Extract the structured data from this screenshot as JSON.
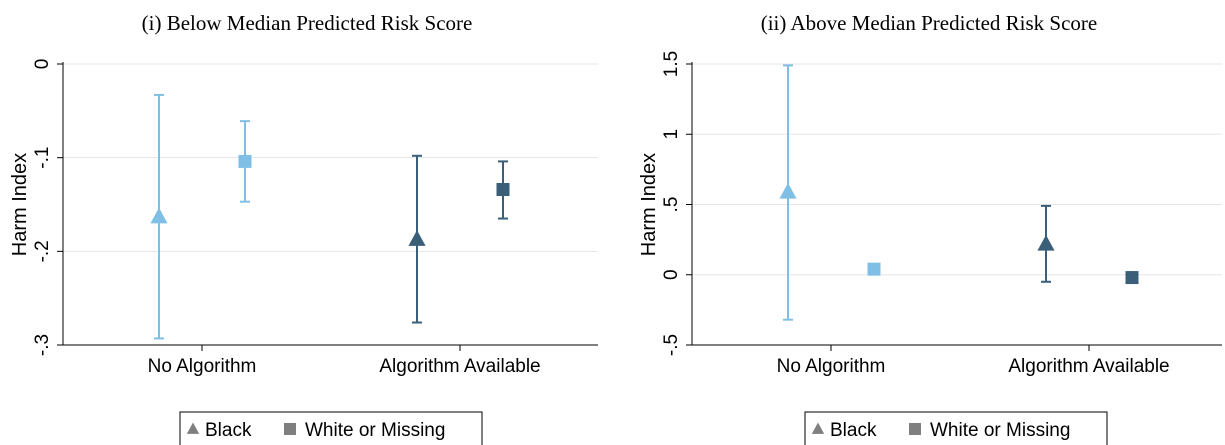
{
  "chart_data": [
    {
      "type": "scatter",
      "title": "(i) Below Median Predicted Risk Score",
      "ylabel": "Harm Index",
      "ylim": [
        -0.3,
        0
      ],
      "yticks": [
        0,
        -0.1,
        -0.2,
        -0.3
      ],
      "ytick_labels": [
        "0",
        "-.1",
        "-.2",
        "-.3"
      ],
      "grid": true,
      "categories": [
        "No Algorithm",
        "Algorithm Available"
      ],
      "series": [
        {
          "name": "Black",
          "marker": "triangle",
          "points": [
            {
              "category": "No Algorithm",
              "estimate": -0.163,
              "ci_low": -0.293,
              "ci_high": -0.033,
              "color": "#7fbfe6"
            },
            {
              "category": "Algorithm Available",
              "estimate": -0.187,
              "ci_low": -0.276,
              "ci_high": -0.098,
              "color": "#3b5f78"
            }
          ]
        },
        {
          "name": "White or Missing",
          "marker": "square",
          "points": [
            {
              "category": "No Algorithm",
              "estimate": -0.104,
              "ci_low": -0.147,
              "ci_high": -0.061,
              "color": "#7fbfe6"
            },
            {
              "category": "Algorithm Available",
              "estimate": -0.134,
              "ci_low": -0.165,
              "ci_high": -0.104,
              "color": "#3b5f78"
            }
          ]
        }
      ],
      "legend": {
        "placement": "bottom",
        "entries": [
          "Black",
          "White or Missing"
        ]
      }
    },
    {
      "type": "scatter",
      "title": "(ii) Above Median Predicted Risk Score",
      "ylabel": "Harm Index",
      "ylim": [
        -0.5,
        1.5
      ],
      "yticks": [
        1.5,
        1,
        0.5,
        0,
        -0.5
      ],
      "ytick_labels": [
        "1.5",
        "1",
        ".5",
        "0",
        "-.5"
      ],
      "grid": true,
      "categories": [
        "No Algorithm",
        "Algorithm Available"
      ],
      "series": [
        {
          "name": "Black",
          "marker": "triangle",
          "points": [
            {
              "category": "No Algorithm",
              "estimate": 0.59,
              "ci_low": -0.32,
              "ci_high": 1.49,
              "color": "#7fbfe6"
            },
            {
              "category": "Algorithm Available",
              "estimate": 0.22,
              "ci_low": -0.05,
              "ci_high": 0.49,
              "color": "#3b5f78"
            }
          ]
        },
        {
          "name": "White or Missing",
          "marker": "square",
          "points": [
            {
              "category": "No Algorithm",
              "estimate": 0.04,
              "ci_low": 0.02,
              "ci_high": 0.06,
              "color": "#7fbfe6"
            },
            {
              "category": "Algorithm Available",
              "estimate": -0.02,
              "ci_low": -0.03,
              "ci_high": -0.01,
              "color": "#3b5f78"
            }
          ]
        }
      ],
      "legend": {
        "placement": "bottom",
        "entries": [
          "Black",
          "White or Missing"
        ]
      }
    }
  ],
  "colors": {
    "no_algorithm": "#7fbfe6",
    "algorithm_available": "#3b5f78",
    "legend_marker": "#7f7f7f",
    "grid": "#e6e6e6",
    "axis": "#000000"
  }
}
